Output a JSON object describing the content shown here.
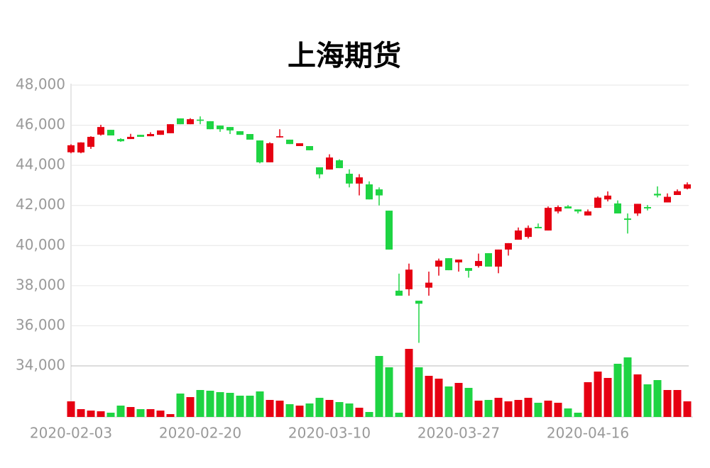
{
  "chart_data": {
    "type": "candlestick",
    "title": "上海期货",
    "categories": [
      "2020-02-03",
      null,
      null,
      null,
      null,
      null,
      null,
      null,
      null,
      null,
      null,
      null,
      null,
      "2020-02-20",
      null,
      null,
      null,
      null,
      null,
      null,
      null,
      null,
      null,
      null,
      null,
      null,
      "2020-03-10",
      null,
      null,
      null,
      null,
      null,
      null,
      null,
      null,
      null,
      null,
      null,
      null,
      "2020-03-27",
      null,
      null,
      null,
      null,
      null,
      null,
      null,
      null,
      null,
      null,
      null,
      null,
      "2020-04-16",
      null,
      null,
      null,
      null,
      null,
      null,
      null,
      null,
      null,
      null
    ],
    "open": [
      44650,
      44640,
      44920,
      45530,
      45770,
      45310,
      45310,
      45520,
      45450,
      45520,
      45600,
      46340,
      46050,
      46280,
      46200,
      45980,
      45910,
      45700,
      45560,
      45240,
      44150,
      45390,
      45280,
      44960,
      44960,
      43900,
      43790,
      44250,
      43580,
      43090,
      43050,
      42800,
      41740,
      37750,
      37820,
      37250,
      37900,
      38950,
      39370,
      39160,
      38880,
      38980,
      39620,
      38950,
      39800,
      40290,
      40430,
      40930,
      40750,
      41700,
      41950,
      41800,
      41500,
      41880,
      42300,
      42100,
      41350,
      41600,
      41920,
      42580,
      42150,
      42520,
      42840
    ],
    "close": [
      45000,
      45140,
      45420,
      45910,
      45490,
      45200,
      45420,
      45420,
      45560,
      45740,
      46050,
      46050,
      46300,
      46220,
      45800,
      45800,
      45740,
      45520,
      45280,
      44150,
      45100,
      45450,
      45060,
      45100,
      44750,
      43550,
      44390,
      43860,
      43090,
      43400,
      42300,
      42500,
      39800,
      37500,
      38800,
      37100,
      38150,
      39250,
      38770,
      39300,
      38740,
      39230,
      38950,
      39800,
      40120,
      40750,
      40880,
      40860,
      41880,
      41920,
      41850,
      41700,
      41700,
      42390,
      42490,
      41600,
      41280,
      42080,
      41850,
      42500,
      42430,
      42710,
      43050
    ],
    "high": [
      45050,
      45150,
      45450,
      46020,
      45770,
      45350,
      45570,
      45520,
      45650,
      45740,
      46050,
      46340,
      46350,
      46440,
      46200,
      45980,
      45910,
      45700,
      45560,
      45240,
      45150,
      45800,
      45280,
      45100,
      44960,
      43900,
      44550,
      44300,
      43800,
      43560,
      43200,
      42900,
      41740,
      38600,
      39100,
      37200,
      38700,
      39350,
      39370,
      39300,
      38880,
      39600,
      39620,
      39800,
      40120,
      40900,
      41000,
      41100,
      41950,
      42000,
      42020,
      41800,
      41800,
      42450,
      42700,
      42250,
      41600,
      42080,
      42020,
      42950,
      42600,
      42800,
      43150
    ],
    "low": [
      44600,
      44600,
      44820,
      45480,
      45490,
      45170,
      45310,
      45420,
      45450,
      45520,
      45600,
      46050,
      46050,
      46050,
      45800,
      45670,
      45560,
      45520,
      45280,
      44100,
      44150,
      45380,
      45060,
      44960,
      44750,
      43350,
      43790,
      43860,
      42900,
      42500,
      42300,
      42000,
      39800,
      37500,
      37500,
      35150,
      37500,
      38500,
      38770,
      38700,
      38400,
      38900,
      38950,
      38620,
      39500,
      40290,
      40350,
      40860,
      40750,
      41600,
      41850,
      41600,
      41500,
      41880,
      42200,
      41600,
      40600,
      41480,
      41750,
      42400,
      42150,
      42520,
      42800
    ],
    "volume": [
      22,
      11,
      9,
      8,
      6,
      16,
      14,
      11,
      11,
      9,
      4,
      33,
      28,
      38,
      37,
      35,
      34,
      30,
      30,
      36,
      24,
      23,
      18,
      16,
      19,
      27,
      24,
      21,
      19,
      13,
      7,
      86,
      70,
      6,
      96,
      70,
      58,
      54,
      43,
      48,
      41,
      23,
      24,
      27,
      22,
      24,
      27,
      20,
      23,
      20,
      12,
      6,
      49,
      64,
      55,
      75,
      84,
      60,
      46,
      52,
      38,
      38,
      22
    ],
    "vlim": [
      0,
      100
    ],
    "ylim": [
      34000,
      48000
    ],
    "yticks": [
      {
        "value": 34000,
        "label": "34,000"
      },
      {
        "value": 36000,
        "label": "36,000"
      },
      {
        "value": 38000,
        "label": "38,000"
      },
      {
        "value": 40000,
        "label": "40,000"
      },
      {
        "value": 42000,
        "label": "42,000"
      },
      {
        "value": 44000,
        "label": "44,000"
      },
      {
        "value": 46000,
        "label": "46,000"
      },
      {
        "value": 48000,
        "label": "48,000"
      }
    ],
    "grid": true,
    "up_color": "#e60012",
    "down_color": "#1ed443"
  }
}
